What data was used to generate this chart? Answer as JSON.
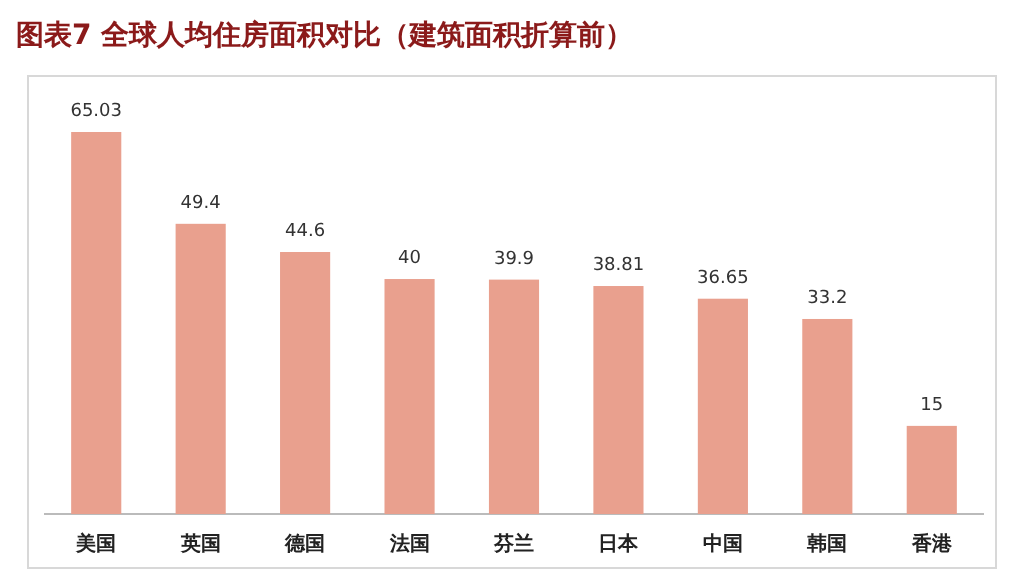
{
  "chart_data": {
    "type": "bar",
    "title": "图表7  全球人均住房面积对比（建筑面积折算前）",
    "categories": [
      "美国",
      "英国",
      "德国",
      "法国",
      "芬兰",
      "日本",
      "中国",
      "韩国",
      "香港"
    ],
    "values": [
      65.03,
      49.4,
      44.6,
      40,
      39.9,
      38.81,
      36.65,
      33.2,
      15
    ],
    "color": "#e9a08e",
    "data_labels": true
  }
}
